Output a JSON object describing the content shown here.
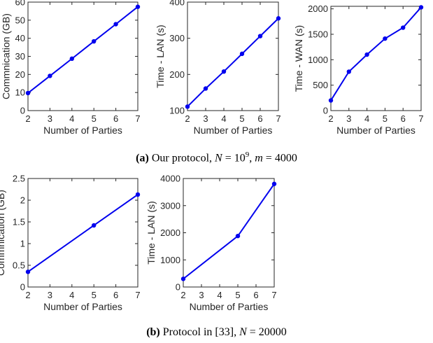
{
  "captions": {
    "a_tag": "(a)",
    "a_text": "Our protocol,",
    "a_n_var": "N",
    "a_n_eq": " = 10",
    "a_n_exp": "9",
    "a_sep": ", ",
    "a_m_var": "m",
    "a_m_eq": " = 4000",
    "b_tag": "(b)",
    "b_text": "Protocol in [33],",
    "b_n_var": "N",
    "b_n_eq": " = 20000"
  },
  "colors": {
    "series": "#0000ee",
    "axis": "#262626"
  },
  "chart_data": [
    {
      "type": "line",
      "xlabel": "Number of Parties",
      "ylabel": "Commnication (GB)",
      "x": [
        2,
        3,
        4,
        5,
        6,
        7
      ],
      "series": [
        {
          "values": [
            9.7,
            19.2,
            28.7,
            38.3,
            47.8,
            57.4
          ]
        }
      ],
      "xlim": [
        2,
        7
      ],
      "ylim": [
        0,
        60
      ],
      "xticks": [
        2,
        3,
        4,
        5,
        6,
        7
      ],
      "yticks": [
        0,
        10,
        20,
        30,
        40,
        50,
        60
      ],
      "yticklabels": [
        "0",
        "10",
        "20",
        "30",
        "40",
        "50",
        "60"
      ],
      "grid": false
    },
    {
      "type": "line",
      "xlabel": "Number of Parties",
      "ylabel": "Time - LAN (s)",
      "x": [
        2,
        3,
        4,
        5,
        6,
        7
      ],
      "series": [
        {
          "values": [
            111,
            161,
            208,
            257,
            306,
            355
          ]
        }
      ],
      "xlim": [
        2,
        7
      ],
      "ylim": [
        100,
        400
      ],
      "xticks": [
        2,
        3,
        4,
        5,
        6,
        7
      ],
      "yticks": [
        100,
        200,
        300,
        400
      ],
      "yticklabels": [
        "100",
        "200",
        "300",
        "400"
      ],
      "grid": false
    },
    {
      "type": "line",
      "xlabel": "Number of Parties",
      "ylabel": "Time - WAN (s)",
      "x": [
        2,
        3,
        4,
        5,
        6,
        7
      ],
      "series": [
        {
          "values": [
            200,
            765,
            1100,
            1415,
            1630,
            2030
          ]
        }
      ],
      "xlim": [
        2,
        7
      ],
      "ylim": [
        0,
        2050
      ],
      "xticks": [
        2,
        3,
        4,
        5,
        6,
        7
      ],
      "yticks": [
        0,
        500,
        1000,
        1500,
        2000
      ],
      "yticklabels": [
        "0",
        "500",
        "1000",
        "1500",
        "2000"
      ],
      "grid": false
    },
    {
      "type": "line",
      "xlabel": "Number of Parties",
      "ylabel": "Commnication (GB)",
      "x": [
        2,
        5,
        7
      ],
      "series": [
        {
          "values": [
            0.35,
            1.42,
            2.13
          ]
        }
      ],
      "xlim": [
        2,
        7
      ],
      "ylim": [
        0,
        2.5
      ],
      "xticks": [
        2,
        3,
        4,
        5,
        6,
        7
      ],
      "yticks": [
        0,
        0.5,
        1,
        1.5,
        2,
        2.5
      ],
      "yticklabels": [
        "0",
        "0.5",
        "1",
        "1.5",
        "2",
        "2.5"
      ],
      "grid": false
    },
    {
      "type": "line",
      "xlabel": "Number of Parties",
      "ylabel": "Time - LAN (s)",
      "x": [
        2,
        5,
        7
      ],
      "series": [
        {
          "values": [
            300,
            1880,
            3800
          ]
        }
      ],
      "xlim": [
        2,
        7
      ],
      "ylim": [
        0,
        4000
      ],
      "xticks": [
        2,
        3,
        4,
        5,
        6,
        7
      ],
      "yticks": [
        0,
        1000,
        2000,
        3000,
        4000
      ],
      "yticklabels": [
        "0",
        "1000",
        "2000",
        "3000",
        "4000"
      ],
      "grid": false
    }
  ]
}
